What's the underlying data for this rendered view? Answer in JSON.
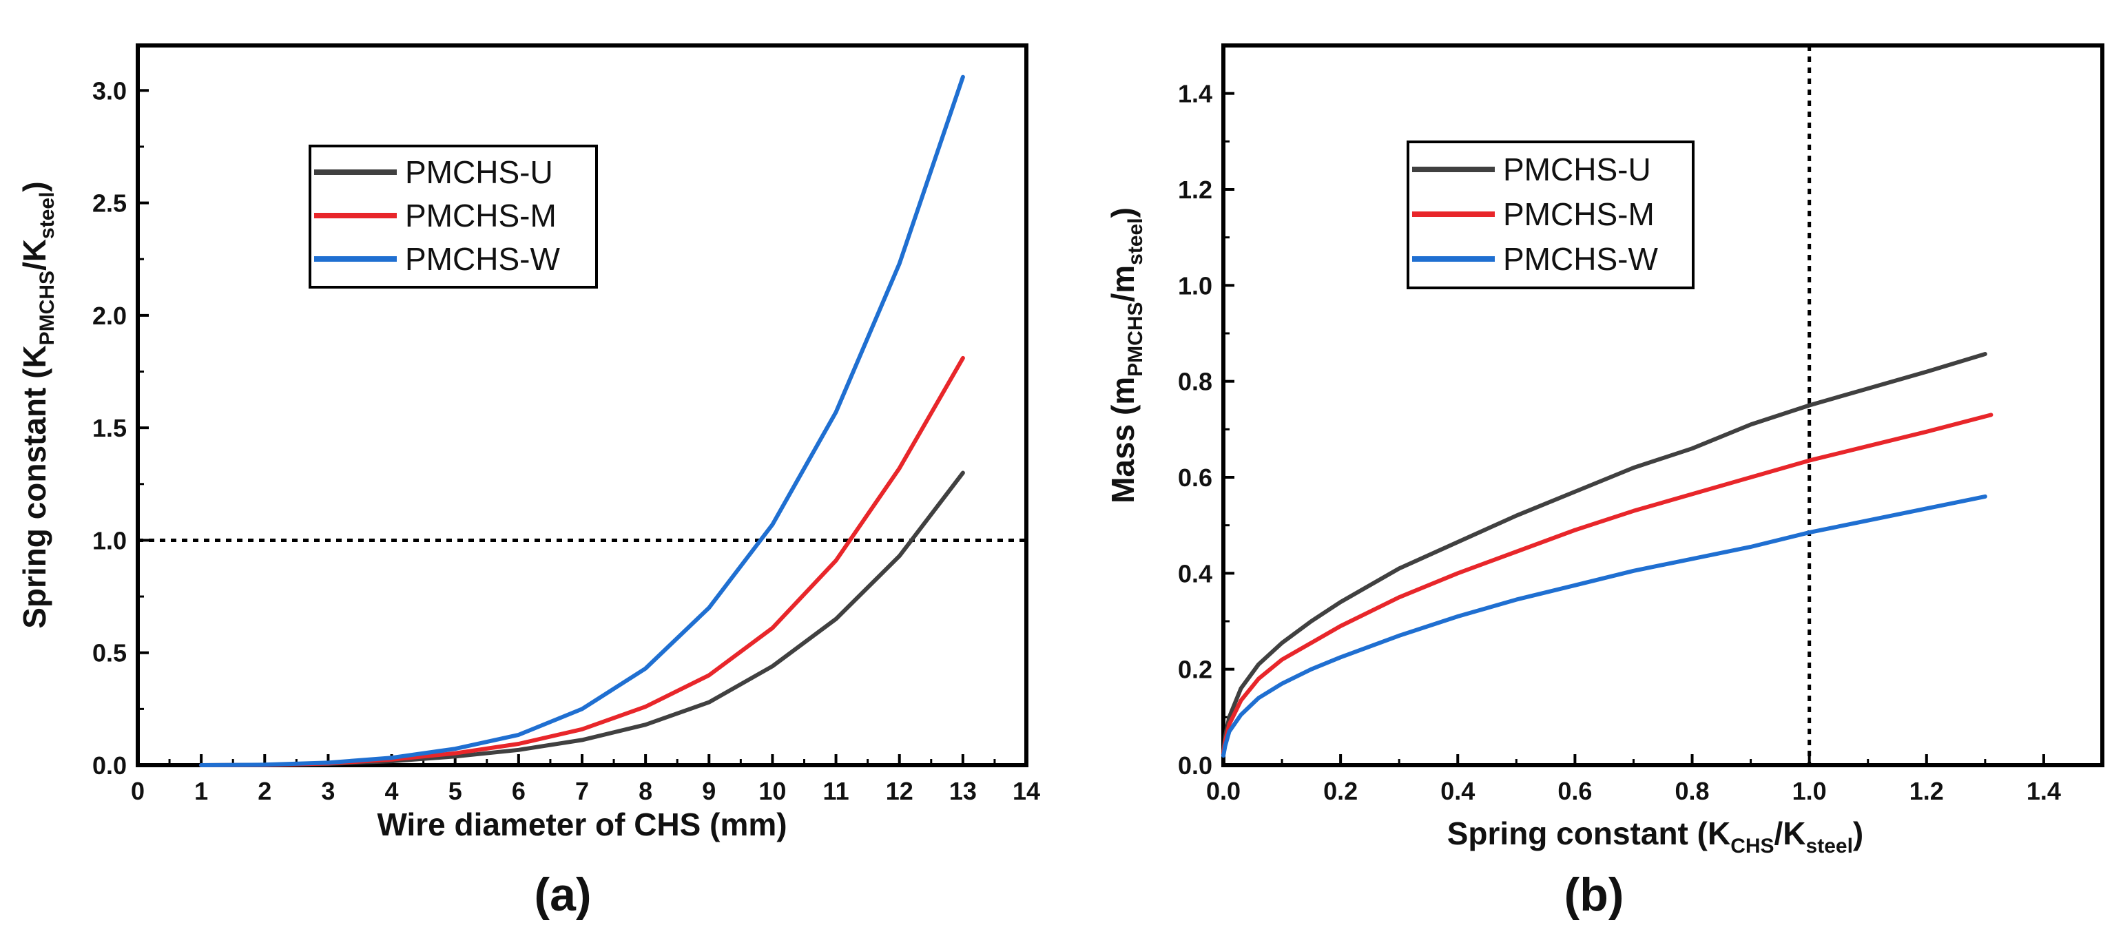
{
  "chart_data": [
    {
      "panel": "(a)",
      "type": "line",
      "xlabel": "Wire diameter of CHS (mm)",
      "ylabel_main": "Spring constant (K",
      "ylabel_sub1": "PMCHS",
      "ylabel_mid": "/K",
      "ylabel_sub2": "steel",
      "ylabel_end": ")",
      "xlim": [
        0,
        14
      ],
      "ylim": [
        0,
        3.2
      ],
      "xticks": [
        0,
        1,
        2,
        3,
        4,
        5,
        6,
        7,
        8,
        9,
        10,
        11,
        12,
        13,
        14
      ],
      "yticks": [
        0.0,
        0.5,
        1.0,
        1.5,
        2.0,
        2.5,
        3.0
      ],
      "xtick_labels": [
        "0",
        "1",
        "2",
        "3",
        "4",
        "5",
        "6",
        "7",
        "8",
        "9",
        "10",
        "11",
        "12",
        "13",
        "14"
      ],
      "ytick_labels": [
        "0.0",
        "0.5",
        "1.0",
        "1.5",
        "2.0",
        "2.5",
        "3.0"
      ],
      "reference_line": {
        "orientation": "horizontal",
        "value": 1.0
      },
      "legend_position": "upper-left",
      "x": [
        1,
        2,
        3,
        4,
        5,
        6,
        7,
        8,
        9,
        10,
        11,
        12,
        13
      ],
      "series": [
        {
          "name": "PMCHS-U",
          "color": "#404040",
          "values": [
            0.0,
            0.001,
            0.006,
            0.018,
            0.039,
            0.068,
            0.112,
            0.18,
            0.28,
            0.44,
            0.65,
            0.93,
            1.3
          ]
        },
        {
          "name": "PMCHS-M",
          "color": "#e8262a",
          "values": [
            0.0,
            0.001,
            0.008,
            0.025,
            0.053,
            0.095,
            0.16,
            0.26,
            0.4,
            0.61,
            0.91,
            1.32,
            1.81
          ]
        },
        {
          "name": "PMCHS-W",
          "color": "#1f6fd1",
          "values": [
            0.0,
            0.002,
            0.011,
            0.033,
            0.073,
            0.135,
            0.25,
            0.43,
            0.7,
            1.07,
            1.57,
            2.23,
            3.06
          ]
        }
      ]
    },
    {
      "panel": "(b)",
      "type": "line",
      "xlabel_main": "Spring constant (K",
      "xlabel_sub1": "CHS",
      "xlabel_mid": "/K",
      "xlabel_sub2": "steel",
      "xlabel_end": ")",
      "ylabel_main": "Mass (m",
      "ylabel_sub1": "PMCHS",
      "ylabel_mid": "/m",
      "ylabel_sub2": "steel",
      "ylabel_end": ")",
      "xlim": [
        0,
        1.5
      ],
      "ylim": [
        0,
        1.5
      ],
      "xticks": [
        0.0,
        0.2,
        0.4,
        0.6,
        0.8,
        1.0,
        1.2,
        1.4
      ],
      "yticks": [
        0.0,
        0.2,
        0.4,
        0.6,
        0.8,
        1.0,
        1.2,
        1.4
      ],
      "xtick_labels": [
        "0.0",
        "0.2",
        "0.4",
        "0.6",
        "0.8",
        "1.0",
        "1.2",
        "1.4"
      ],
      "ytick_labels": [
        "0.0",
        "0.2",
        "0.4",
        "0.6",
        "0.8",
        "1.0",
        "1.2",
        "1.4"
      ],
      "reference_line": {
        "orientation": "vertical",
        "value": 1.0
      },
      "legend_position": "upper-left",
      "series": [
        {
          "name": "PMCHS-U",
          "color": "#404040",
          "x": [
            0,
            0.003,
            0.01,
            0.03,
            0.06,
            0.1,
            0.15,
            0.2,
            0.3,
            0.4,
            0.5,
            0.6,
            0.7,
            0.8,
            0.9,
            1.0,
            1.1,
            1.2,
            1.3
          ],
          "values": [
            0.03,
            0.06,
            0.1,
            0.16,
            0.21,
            0.255,
            0.3,
            0.34,
            0.41,
            0.465,
            0.52,
            0.57,
            0.62,
            0.66,
            0.71,
            0.75,
            0.785,
            0.82,
            0.857
          ]
        },
        {
          "name": "PMCHS-M",
          "color": "#e8262a",
          "x": [
            0,
            0.003,
            0.01,
            0.03,
            0.06,
            0.1,
            0.15,
            0.2,
            0.3,
            0.4,
            0.5,
            0.6,
            0.7,
            0.8,
            0.9,
            1.0,
            1.1,
            1.2,
            1.31
          ],
          "values": [
            0.025,
            0.05,
            0.085,
            0.135,
            0.18,
            0.22,
            0.255,
            0.29,
            0.35,
            0.4,
            0.445,
            0.49,
            0.53,
            0.565,
            0.6,
            0.635,
            0.665,
            0.695,
            0.73
          ]
        },
        {
          "name": "PMCHS-W",
          "color": "#1f6fd1",
          "x": [
            0,
            0.003,
            0.01,
            0.03,
            0.06,
            0.1,
            0.15,
            0.2,
            0.3,
            0.4,
            0.5,
            0.6,
            0.7,
            0.8,
            0.9,
            1.0,
            1.1,
            1.2,
            1.3
          ],
          "values": [
            0.02,
            0.04,
            0.07,
            0.105,
            0.14,
            0.17,
            0.2,
            0.225,
            0.27,
            0.31,
            0.345,
            0.375,
            0.405,
            0.43,
            0.455,
            0.485,
            0.51,
            0.535,
            0.56
          ]
        }
      ]
    }
  ]
}
